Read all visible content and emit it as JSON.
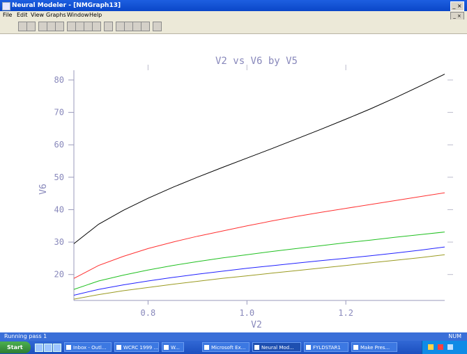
{
  "window": {
    "title": "Neural Modeler - [NMGraph13]",
    "controls": "_ ×"
  },
  "menu": {
    "items": [
      "File",
      "Edit",
      "View",
      "Graphs",
      "Window",
      "Help"
    ],
    "sys": "_ ×"
  },
  "toolbar": {
    "buttons": [
      "new-icon",
      "save-icon",
      "open-icon",
      "copy-icon",
      "paste-icon",
      "chart-icon",
      "zoom-icon",
      "print-icon",
      "help-icon",
      "grid-icon",
      "prev-icon",
      "next-icon",
      "play-icon",
      "stop-icon",
      "settings-icon"
    ]
  },
  "status": {
    "text": "Running pass 1",
    "right": "NUM"
  },
  "taskbar": {
    "start_label": "Start",
    "tasks": [
      {
        "label": "Inbox - Outl...",
        "active": false
      },
      {
        "label": "WCRC 1999 ...",
        "active": false
      },
      {
        "label": "W...",
        "active": false
      },
      {
        "label": "Microsoft Ex...",
        "active": false
      },
      {
        "label": "Neural Mod...",
        "active": true
      },
      {
        "label": "FYLDSTAR1",
        "active": false
      },
      {
        "label": "Make Pres...",
        "active": false
      }
    ]
  },
  "chart_data": {
    "type": "line",
    "title": "V2 vs V6 by V5",
    "xlabel": "V2",
    "ylabel": "V6",
    "xlim": [
      0.65,
      1.4
    ],
    "ylim": [
      12,
      83
    ],
    "xticks": [
      0.8,
      1.0,
      1.2
    ],
    "xtick_labels": [
      "0.8",
      "1.0",
      "1.2"
    ],
    "yticks": [
      20,
      30,
      40,
      50,
      60,
      70,
      80
    ],
    "ytick_labels": [
      "20",
      "30",
      "40",
      "50",
      "60",
      "70",
      "80"
    ],
    "grid": false,
    "x": [
      0.65,
      0.7,
      0.75,
      0.8,
      0.85,
      0.9,
      0.95,
      1.0,
      1.05,
      1.1,
      1.15,
      1.2,
      1.25,
      1.3,
      1.35,
      1.4
    ],
    "series": [
      {
        "color": "#000000",
        "values": [
          29.5,
          35.5,
          39.8,
          43.5,
          46.9,
          50.0,
          53.0,
          55.9,
          58.8,
          61.8,
          64.8,
          67.9,
          71.1,
          74.5,
          78.1,
          81.8
        ]
      },
      {
        "color": "#ff3030",
        "values": [
          18.8,
          22.8,
          25.6,
          28.0,
          30.0,
          31.8,
          33.4,
          35.0,
          36.5,
          37.9,
          39.2,
          40.4,
          41.6,
          42.8,
          44.0,
          45.2
        ]
      },
      {
        "color": "#20c020",
        "values": [
          15.4,
          18.0,
          19.8,
          21.4,
          22.8,
          24.0,
          25.1,
          26.1,
          27.1,
          28.0,
          28.9,
          29.8,
          30.6,
          31.5,
          32.3,
          33.1
        ]
      },
      {
        "color": "#2020ff",
        "values": [
          13.6,
          15.4,
          16.8,
          18.0,
          19.1,
          20.1,
          21.0,
          21.9,
          22.7,
          23.5,
          24.3,
          25.0,
          25.8,
          26.6,
          27.5,
          28.5
        ]
      },
      {
        "color": "#9a9a20",
        "values": [
          12.4,
          13.8,
          15.0,
          16.0,
          17.0,
          17.9,
          18.8,
          19.6,
          20.4,
          21.2,
          22.0,
          22.8,
          23.6,
          24.4,
          25.2,
          26.1
        ]
      }
    ]
  }
}
